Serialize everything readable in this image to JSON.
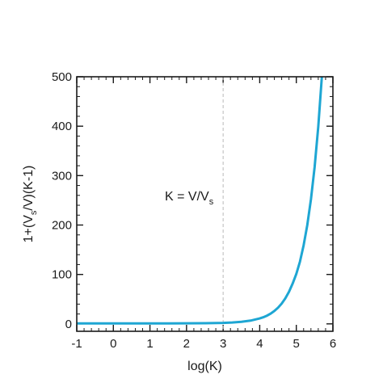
{
  "chart_data": {
    "type": "line",
    "xlabel": "log(K)",
    "ylabel": {
      "pre": "1+(V",
      "sub1": "s",
      "mid": "/V)(K-1)"
    },
    "xlim": [
      -1,
      6
    ],
    "ylim": [
      -15,
      500
    ],
    "x_ticks": [
      "-1",
      "0",
      "1",
      "2",
      "3",
      "4",
      "5",
      "6"
    ],
    "x_tick_values": [
      -1,
      0,
      1,
      2,
      3,
      4,
      5,
      6
    ],
    "y_ticks": [
      "0",
      "100",
      "200",
      "300",
      "400",
      "500"
    ],
    "y_tick_values": [
      0,
      100,
      200,
      300,
      400,
      500
    ],
    "minor_ticks": {
      "x_step": 0.2,
      "y_step": 20
    },
    "grid": false,
    "reference_line": {
      "x": 3,
      "style": "dashed",
      "color": "#b8b8b8"
    },
    "annotation": {
      "pre": "K = V/V",
      "sub": "s"
    },
    "series": [
      {
        "color": "#1ea6d3",
        "x": [
          -1,
          -0.5,
          0,
          0.5,
          1,
          1.5,
          2,
          2.5,
          3,
          3.25,
          3.5,
          3.75,
          4,
          4.1,
          4.2,
          4.3,
          4.4,
          4.5,
          4.6,
          4.7,
          4.8,
          4.9,
          5,
          5.1,
          5.2,
          5.3,
          5.4,
          5.5,
          5.6,
          5.7,
          5.72
        ],
        "y": [
          1,
          1,
          1,
          1,
          1,
          1,
          1.1,
          1.3,
          2,
          2.8,
          4.2,
          6.6,
          11,
          13.5,
          16.7,
          20.8,
          26.1,
          32.7,
          41,
          51.6,
          65,
          81.6,
          101,
          126,
          159,
          200,
          252,
          317,
          399,
          502,
          527
        ]
      }
    ]
  }
}
